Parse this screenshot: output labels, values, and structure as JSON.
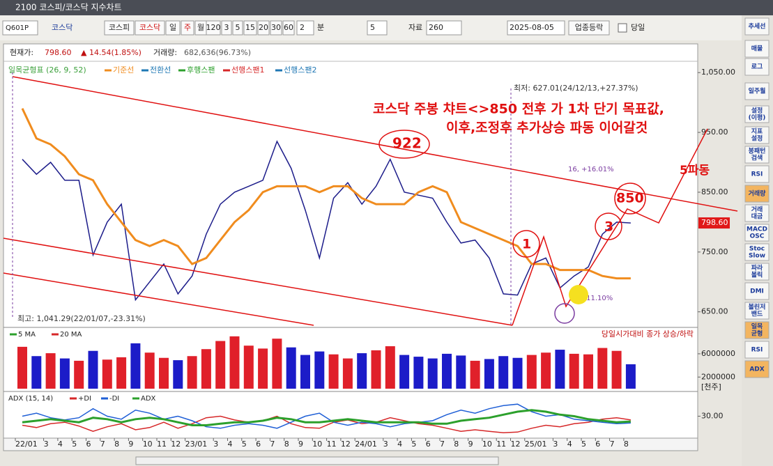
{
  "window": {
    "title": "2100 코스피/코스닥 지수차트"
  },
  "toolbar": {
    "code": "Q601P",
    "market": "코스닥",
    "buttons": [
      "코스피",
      "코스닥",
      "일",
      "주",
      "월",
      "120",
      "3",
      "5",
      "15",
      "20",
      "30",
      "60"
    ],
    "minute_value": "2",
    "minute_unit": "분",
    "step": "5",
    "data_label": "자료",
    "data_count": "260",
    "date": "2025-08-05",
    "sector_button": "업종등락",
    "same_day": "당일"
  },
  "quote": {
    "price_label": "현재가:",
    "price": "798.60",
    "change": "▲ 14.54(1.85%)",
    "volume_label": "거래량:",
    "volume": "682,636(96.73%)"
  },
  "sidebar": [
    [
      "추세선"
    ],
    [
      "매물"
    ],
    [
      "로그"
    ],
    [
      "일주월"
    ],
    [
      "설정",
      "(이평)"
    ],
    [
      "지표",
      "설정"
    ],
    [
      "봉패턴",
      "검색"
    ],
    [
      "RSI"
    ],
    [
      "거래량"
    ],
    [
      "거래",
      "대금"
    ],
    [
      "MACD",
      "OSC"
    ],
    [
      "Stoc",
      "Slow"
    ],
    [
      "파라",
      "볼릭"
    ],
    [
      "DMI"
    ],
    [
      "볼린저",
      "밴드"
    ],
    [
      "일목",
      "균형"
    ],
    [
      "RSI"
    ],
    [
      "ADX"
    ]
  ],
  "chart_data": [
    {
      "type": "line",
      "legend_title": "일목균형표 (26, 9, 52)",
      "categories": [
        "22/01",
        null,
        "3",
        "4",
        "5",
        "6",
        "7",
        "8",
        "9",
        "10",
        "11",
        "12",
        "23/01",
        null,
        "3",
        "4",
        "5",
        "6",
        "7",
        "8",
        "9",
        "10",
        "11",
        "12",
        "24/01",
        null,
        "3",
        "4",
        "5",
        "6",
        "7",
        "8",
        "9",
        "10",
        "11",
        "12",
        "25/01",
        null,
        "3",
        "4",
        "5",
        "6",
        "7",
        "8"
      ],
      "series": [
        {
          "color": "#1c1c8a",
          "values": [
            905,
            880,
            900,
            870,
            870,
            745,
            800,
            830,
            670,
            700,
            730,
            680,
            710,
            780,
            830,
            850,
            860,
            870,
            935,
            890,
            820,
            740,
            840,
            866,
            830,
            860,
            905,
            850,
            845,
            840,
            800,
            765,
            770,
            740,
            680,
            678,
            730,
            740,
            690,
            710,
            725,
            780,
            800,
            798.6
          ]
        },
        {
          "name": "기준선",
          "color": "#f08c1e",
          "values": [
            990,
            940,
            930,
            910,
            880,
            870,
            830,
            800,
            770,
            760,
            770,
            760,
            730,
            740,
            770,
            800,
            820,
            850,
            860,
            860,
            860,
            850,
            860,
            860,
            840,
            830,
            830,
            830,
            850,
            860,
            850,
            800,
            790,
            780,
            770,
            760,
            730,
            730,
            720,
            720,
            720,
            710,
            706,
            706
          ]
        }
      ],
      "indicator_labels": [
        {
          "label": "전환선",
          "color": "#1e78b4"
        },
        {
          "label": "후행스팬",
          "color": "#2ca02c"
        },
        {
          "label": "선행스팬1",
          "color": "#d62728"
        },
        {
          "label": "선행스팬2",
          "color": "#1f77b4"
        }
      ],
      "ylim": [
        624,
        1098
      ],
      "yticks": [
        {
          "value": 650,
          "label": "650.00"
        },
        {
          "value": 750,
          "label": "750.00"
        },
        {
          "value": 850,
          "label": "850.00"
        },
        {
          "value": 950,
          "label": "950.00"
        },
        {
          "value": 1050,
          "label": "1,050.00"
        }
      ],
      "last_price": {
        "value": 798.6,
        "label": "798.60"
      },
      "annotations": [
        "코스닥 주봉 챠트<>850 전후 가 1차 단기 목표값,",
        "이후,조정후 추가상승 파동 이어갈것",
        "922",
        "850",
        "1",
        "3",
        "5파동",
        "최저: 627.01(24/12/13,+27.37%)",
        "최고: 1,041.29(22/01/07,-23.31%)",
        "16, +16.01%",
        "7, +11.10%"
      ]
    },
    {
      "type": "bar",
      "legend": [
        {
          "label": "5 MA",
          "color": "#2ca02c"
        },
        {
          "label": "20 MA",
          "color": "#d62728"
        }
      ],
      "note": "당일시가대비 종가 상승/하락",
      "values": [
        7200000,
        5600000,
        6100000,
        5200000,
        4800000,
        6500000,
        5000000,
        5400000,
        7800000,
        6200000,
        5300000,
        4900000,
        5600000,
        6800000,
        8200000,
        9000000,
        7400000,
        6900000,
        8600000,
        7100000,
        5800000,
        6400000,
        5900000,
        5200000,
        6100000,
        6600000,
        7300000,
        5800000,
        5500000,
        5200000,
        6000000,
        5700000,
        4800000,
        5100000,
        5600000,
        5300000,
        5800000,
        6200000,
        6700000,
        6000000,
        5900000,
        7000000,
        6500000,
        4200000
      ],
      "up_color": "#e0202a",
      "down_color": "#1c1cc8",
      "ylim": [
        0,
        10300000
      ],
      "yticks": [
        2000000,
        6000000
      ],
      "unit": "[천주]"
    },
    {
      "type": "line",
      "title": "ADX (15, 14)",
      "series": [
        {
          "name": "+DI",
          "color": "#d62728",
          "values": [
            18,
            15,
            20,
            22,
            17,
            10,
            16,
            20,
            12,
            15,
            22,
            14,
            20,
            28,
            30,
            25,
            22,
            24,
            30,
            20,
            15,
            14,
            22,
            25,
            20,
            22,
            28,
            24,
            20,
            18,
            14,
            10,
            12,
            10,
            8,
            9,
            14,
            18,
            16,
            20,
            22,
            26,
            28,
            25
          ]
        },
        {
          "name": "-DI",
          "color": "#1f5fd6",
          "values": [
            30,
            34,
            28,
            25,
            28,
            40,
            30,
            26,
            38,
            34,
            26,
            30,
            24,
            16,
            14,
            18,
            20,
            18,
            14,
            22,
            30,
            34,
            22,
            18,
            22,
            20,
            16,
            20,
            22,
            24,
            32,
            38,
            34,
            40,
            44,
            46,
            36,
            30,
            32,
            26,
            24,
            22,
            20,
            21
          ]
        },
        {
          "name": "ADX",
          "color": "#2ca02c",
          "values": [
            22,
            24,
            26,
            24,
            22,
            28,
            26,
            22,
            26,
            28,
            26,
            22,
            18,
            18,
            20,
            22,
            22,
            24,
            28,
            26,
            22,
            22,
            24,
            26,
            24,
            22,
            22,
            22,
            22,
            20,
            20,
            24,
            26,
            28,
            32,
            36,
            38,
            36,
            32,
            30,
            26,
            24,
            22,
            23
          ]
        }
      ],
      "ylim": [
        0,
        60
      ],
      "yticks": [
        {
          "value": 30,
          "label": "30.00"
        }
      ]
    }
  ]
}
